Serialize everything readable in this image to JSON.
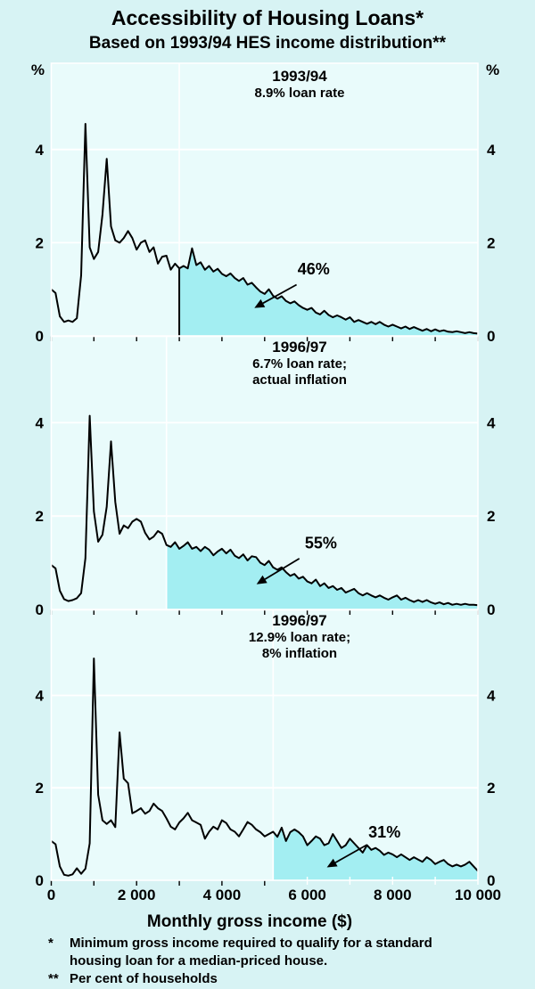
{
  "title": "Accessibility of Housing Loans*",
  "subtitle": "Based on 1993/94 HES income distribution**",
  "xlabel": "Monthly gross income ($)",
  "footnotes": [
    {
      "marker": "*",
      "lines": [
        "Minimum gross income required to qualify for a standard",
        "housing loan for a median-priced house."
      ]
    },
    {
      "marker": "**",
      "lines": [
        "Per cent of households"
      ]
    }
  ],
  "colors": {
    "page_bg": "#D7F3F4",
    "plot_bg": "#E9FBFB",
    "shade": "#A3EEF2",
    "grid": "#FFFFFF",
    "line": "#000000"
  },
  "chart_data": {
    "type": "area",
    "title": "Accessibility of Housing Loans",
    "xlabel": "Monthly gross income ($)",
    "y_unit": "%",
    "xlim": [
      0,
      10000
    ],
    "ylim": [
      0,
      5.85
    ],
    "y_ticks": [
      0,
      2,
      4
    ],
    "y_gridlines": [
      2,
      4
    ],
    "x_ticks": [
      0,
      1000,
      2000,
      3000,
      4000,
      5000,
      6000,
      7000,
      8000,
      9000,
      10000
    ],
    "x_tick_labels": [
      "0",
      "2 000",
      "4 000",
      "6 000",
      "8 000",
      "10 000"
    ],
    "x_tick_label_positions": [
      0,
      2000,
      4000,
      6000,
      8000,
      10000
    ],
    "legend": "none",
    "grid": "on",
    "panels": [
      {
        "title": "1993/94",
        "subtitle_lines": [
          "8.9% loan rate"
        ],
        "share_label": "46%",
        "share_pct": 46,
        "threshold_x": 3000,
        "black_threshold_line": true,
        "label_x": 6150,
        "label_y": 1.32,
        "arrow_from": [
          5750,
          1.1
        ],
        "arrow_to": [
          4760,
          0.6
        ],
        "x_start": 0,
        "x_step": 100,
        "y": [
          1.0,
          0.92,
          0.42,
          0.3,
          0.33,
          0.3,
          0.38,
          1.3,
          4.55,
          1.9,
          1.65,
          1.8,
          2.6,
          3.8,
          2.35,
          2.05,
          2.0,
          2.1,
          2.25,
          2.1,
          1.85,
          2.0,
          2.05,
          1.8,
          1.9,
          1.55,
          1.7,
          1.72,
          1.42,
          1.55,
          1.45,
          1.5,
          1.45,
          1.88,
          1.52,
          1.58,
          1.42,
          1.5,
          1.38,
          1.44,
          1.33,
          1.28,
          1.34,
          1.24,
          1.18,
          1.24,
          1.1,
          1.14,
          1.04,
          0.95,
          0.9,
          1.0,
          0.86,
          0.8,
          0.85,
          0.75,
          0.7,
          0.74,
          0.66,
          0.6,
          0.56,
          0.6,
          0.5,
          0.46,
          0.54,
          0.45,
          0.4,
          0.44,
          0.4,
          0.35,
          0.4,
          0.3,
          0.34,
          0.3,
          0.26,
          0.3,
          0.25,
          0.3,
          0.24,
          0.2,
          0.24,
          0.2,
          0.16,
          0.2,
          0.15,
          0.19,
          0.15,
          0.11,
          0.15,
          0.1,
          0.14,
          0.1,
          0.12,
          0.09,
          0.08,
          0.1,
          0.08,
          0.06,
          0.08,
          0.06,
          0.05
        ]
      },
      {
        "title": "1996/97",
        "subtitle_lines": [
          "6.7% loan rate;",
          "actual inflation"
        ],
        "share_label": "55%",
        "share_pct": 55,
        "threshold_x": 2700,
        "black_threshold_line": false,
        "label_x": 6320,
        "label_y": 1.31,
        "arrow_from": [
          5815,
          1.09
        ],
        "arrow_to": [
          4810,
          0.54
        ],
        "x_start": 0,
        "x_step": 100,
        "y": [
          0.95,
          0.88,
          0.4,
          0.22,
          0.18,
          0.2,
          0.24,
          0.35,
          1.1,
          4.15,
          2.1,
          1.45,
          1.6,
          2.2,
          3.6,
          2.3,
          1.62,
          1.8,
          1.74,
          1.88,
          1.94,
          1.88,
          1.64,
          1.5,
          1.56,
          1.68,
          1.62,
          1.38,
          1.34,
          1.44,
          1.3,
          1.36,
          1.44,
          1.3,
          1.34,
          1.25,
          1.34,
          1.28,
          1.16,
          1.24,
          1.3,
          1.2,
          1.28,
          1.15,
          1.1,
          1.18,
          1.05,
          1.14,
          1.12,
          1.0,
          0.95,
          1.04,
          0.9,
          0.85,
          0.9,
          0.8,
          0.72,
          0.76,
          0.66,
          0.7,
          0.6,
          0.56,
          0.64,
          0.5,
          0.56,
          0.46,
          0.5,
          0.42,
          0.46,
          0.36,
          0.4,
          0.44,
          0.35,
          0.3,
          0.35,
          0.3,
          0.26,
          0.3,
          0.25,
          0.21,
          0.26,
          0.3,
          0.21,
          0.25,
          0.2,
          0.16,
          0.2,
          0.16,
          0.2,
          0.15,
          0.12,
          0.15,
          0.11,
          0.14,
          0.1,
          0.12,
          0.1,
          0.12,
          0.1,
          0.1,
          0.09
        ]
      },
      {
        "title": "1996/97",
        "subtitle_lines": [
          "12.9% loan rate;",
          "8% inflation"
        ],
        "share_label": "31%",
        "share_pct": 31,
        "threshold_x": 5200,
        "black_threshold_line": false,
        "label_x": 7810,
        "label_y": 0.93,
        "arrow_from": [
          7400,
          0.77
        ],
        "arrow_to": [
          6460,
          0.28
        ],
        "x_start": 0,
        "x_step": 100,
        "y": [
          0.85,
          0.78,
          0.3,
          0.12,
          0.1,
          0.13,
          0.26,
          0.14,
          0.25,
          0.8,
          4.8,
          1.85,
          1.3,
          1.22,
          1.3,
          1.15,
          3.2,
          2.2,
          2.1,
          1.45,
          1.5,
          1.56,
          1.44,
          1.5,
          1.66,
          1.56,
          1.5,
          1.34,
          1.16,
          1.1,
          1.25,
          1.34,
          1.46,
          1.3,
          1.25,
          1.2,
          0.9,
          1.05,
          1.16,
          1.1,
          1.3,
          1.24,
          1.1,
          1.05,
          0.95,
          1.1,
          1.26,
          1.2,
          1.1,
          1.04,
          0.95,
          1.0,
          1.05,
          0.94,
          1.14,
          0.85,
          1.04,
          1.1,
          1.04,
          0.95,
          0.76,
          0.85,
          0.95,
          0.9,
          0.76,
          0.8,
          1.0,
          0.85,
          0.7,
          0.76,
          0.9,
          0.8,
          0.7,
          0.6,
          0.76,
          0.66,
          0.7,
          0.64,
          0.55,
          0.6,
          0.56,
          0.5,
          0.56,
          0.5,
          0.44,
          0.5,
          0.45,
          0.4,
          0.5,
          0.44,
          0.35,
          0.4,
          0.44,
          0.35,
          0.3,
          0.34,
          0.3,
          0.34,
          0.4,
          0.3,
          0.2
        ]
      }
    ]
  }
}
